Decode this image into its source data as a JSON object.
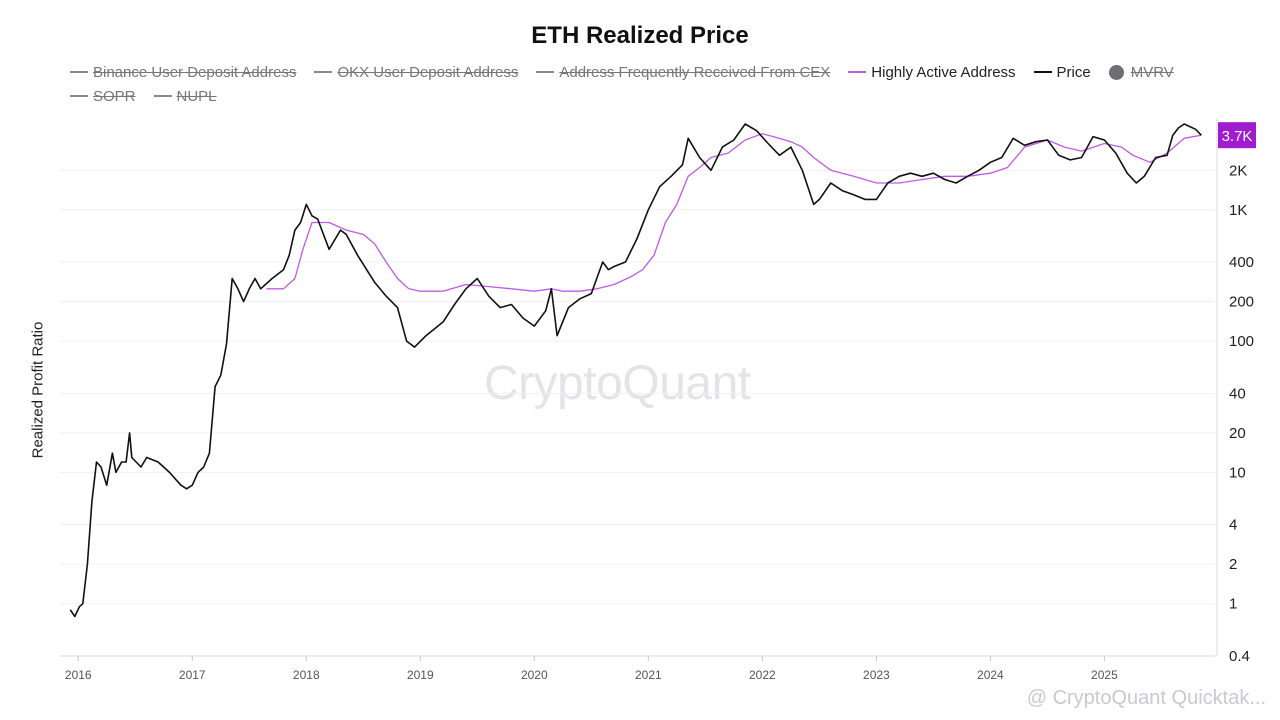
{
  "title": "ETH Realized Price",
  "legend": [
    {
      "label": "Binance User Deposit Address",
      "active": false,
      "marker": "line",
      "color": "#8a8a8a"
    },
    {
      "label": "OKX User Deposit Address",
      "active": false,
      "marker": "line",
      "color": "#8a8a8a"
    },
    {
      "label": "Address Frequently Received From CEX",
      "active": false,
      "marker": "line",
      "color": "#8a8a8a"
    },
    {
      "label": "Highly Active Address",
      "active": true,
      "marker": "line",
      "color": "#c15be6"
    },
    {
      "label": "Price",
      "active": true,
      "marker": "line",
      "color": "#111111"
    },
    {
      "label": "MVRV",
      "active": false,
      "marker": "dot",
      "color": "#6e6e73"
    },
    {
      "label": "SOPR",
      "active": false,
      "marker": "line",
      "color": "#8a8a8a"
    },
    {
      "label": "NUPL",
      "active": false,
      "marker": "line",
      "color": "#8a8a8a"
    }
  ],
  "watermark": "CryptoQuant",
  "credit": "@ CryptoQuant Quicktak...",
  "chart_data": {
    "type": "line",
    "title": "ETH Realized Price",
    "ylabel": "Realized Profit Ratio",
    "yscale": "log",
    "ylim": [
      0.4,
      5000
    ],
    "y_ticks": [
      0.4,
      1,
      2,
      4,
      10,
      20,
      40,
      100,
      200,
      400,
      1000,
      2000
    ],
    "y_tick_labels": [
      "0.4",
      "1",
      "2",
      "4",
      "10",
      "20",
      "40",
      "100",
      "200",
      "400",
      "1K",
      "2K"
    ],
    "xlim": [
      2015.84,
      2025.97
    ],
    "x_ticks": [
      2016,
      2017,
      2018,
      2019,
      2020,
      2021,
      2022,
      2023,
      2024,
      2025
    ],
    "x_tick_labels": [
      "2016",
      "2017",
      "2018",
      "2019",
      "2020",
      "2021",
      "2022",
      "2023",
      "2024",
      "2025"
    ],
    "last_value_label": "3.7K",
    "last_value": 3700,
    "grid": true,
    "legend_position": "top",
    "series": [
      {
        "name": "Price",
        "color": "#111111",
        "x": [
          2015.93,
          2015.97,
          2016.01,
          2016.04,
          2016.08,
          2016.12,
          2016.16,
          2016.2,
          2016.25,
          2016.3,
          2016.33,
          2016.38,
          2016.42,
          2016.45,
          2016.47,
          2016.55,
          2016.6,
          2016.7,
          2016.8,
          2016.9,
          2016.95,
          2017.0,
          2017.05,
          2017.1,
          2017.15,
          2017.2,
          2017.25,
          2017.3,
          2017.35,
          2017.4,
          2017.45,
          2017.5,
          2017.55,
          2017.6,
          2017.7,
          2017.8,
          2017.85,
          2017.9,
          2017.95,
          2018.0,
          2018.05,
          2018.1,
          2018.2,
          2018.3,
          2018.35,
          2018.45,
          2018.6,
          2018.7,
          2018.8,
          2018.88,
          2018.95,
          2019.05,
          2019.2,
          2019.3,
          2019.4,
          2019.5,
          2019.6,
          2019.7,
          2019.8,
          2019.9,
          2020.0,
          2020.1,
          2020.15,
          2020.2,
          2020.3,
          2020.4,
          2020.5,
          2020.6,
          2020.65,
          2020.7,
          2020.8,
          2020.9,
          2021.0,
          2021.1,
          2021.2,
          2021.3,
          2021.35,
          2021.45,
          2021.55,
          2021.65,
          2021.75,
          2021.85,
          2021.95,
          2022.05,
          2022.15,
          2022.25,
          2022.35,
          2022.45,
          2022.5,
          2022.6,
          2022.7,
          2022.8,
          2022.9,
          2023.0,
          2023.1,
          2023.2,
          2023.3,
          2023.4,
          2023.5,
          2023.6,
          2023.7,
          2023.8,
          2023.9,
          2024.0,
          2024.1,
          2024.2,
          2024.3,
          2024.4,
          2024.5,
          2024.6,
          2024.7,
          2024.8,
          2024.9,
          2025.0,
          2025.1,
          2025.2,
          2025.28,
          2025.35,
          2025.45,
          2025.55,
          2025.6,
          2025.65,
          2025.7,
          2025.8,
          2025.85
        ],
        "y": [
          0.9,
          0.8,
          0.95,
          1.0,
          2.0,
          6.0,
          12.0,
          11.0,
          8.0,
          14.0,
          10.0,
          12.0,
          12.0,
          20.0,
          13.0,
          11.0,
          13.0,
          12.0,
          10.0,
          8.0,
          7.5,
          8.0,
          10.0,
          11.0,
          14.0,
          45.0,
          55.0,
          95.0,
          300.0,
          250.0,
          200.0,
          250.0,
          300.0,
          250.0,
          300.0,
          350.0,
          450.0,
          700.0,
          800.0,
          1100.0,
          900.0,
          850.0,
          500.0,
          700.0,
          650.0,
          450.0,
          280.0,
          220.0,
          180.0,
          100.0,
          90.0,
          110.0,
          140.0,
          190.0,
          250.0,
          300.0,
          220.0,
          180.0,
          190.0,
          150.0,
          130.0,
          170.0,
          250.0,
          110.0,
          180.0,
          210.0,
          230.0,
          400.0,
          350.0,
          370.0,
          400.0,
          600.0,
          1000.0,
          1500.0,
          1800.0,
          2200.0,
          3500.0,
          2500.0,
          2000.0,
          3000.0,
          3400.0,
          4500.0,
          4000.0,
          3200.0,
          2600.0,
          3000.0,
          2000.0,
          1100.0,
          1200.0,
          1600.0,
          1400.0,
          1300.0,
          1200.0,
          1200.0,
          1600.0,
          1800.0,
          1900.0,
          1800.0,
          1900.0,
          1700.0,
          1600.0,
          1800.0,
          2000.0,
          2300.0,
          2500.0,
          3500.0,
          3100.0,
          3300.0,
          3400.0,
          2600.0,
          2400.0,
          2500.0,
          3600.0,
          3400.0,
          2700.0,
          1900.0,
          1600.0,
          1800.0,
          2500.0,
          2600.0,
          3700.0,
          4200.0,
          4500.0,
          4100.0,
          3700.0
        ]
      },
      {
        "name": "Highly Active Address",
        "color": "#c15be6",
        "x": [
          2017.65,
          2017.8,
          2017.9,
          2017.97,
          2018.05,
          2018.2,
          2018.35,
          2018.5,
          2018.6,
          2018.7,
          2018.8,
          2018.9,
          2019.0,
          2019.2,
          2019.4,
          2019.6,
          2019.8,
          2020.0,
          2020.15,
          2020.25,
          2020.4,
          2020.55,
          2020.7,
          2020.85,
          2020.95,
          2021.05,
          2021.15,
          2021.25,
          2021.35,
          2021.45,
          2021.55,
          2021.7,
          2021.85,
          2022.0,
          2022.1,
          2022.25,
          2022.35,
          2022.45,
          2022.6,
          2022.8,
          2023.0,
          2023.2,
          2023.4,
          2023.6,
          2023.8,
          2024.0,
          2024.15,
          2024.3,
          2024.5,
          2024.65,
          2024.8,
          2025.0,
          2025.15,
          2025.25,
          2025.4,
          2025.55,
          2025.7,
          2025.85
        ],
        "y": [
          250.0,
          250.0,
          300.0,
          500.0,
          800.0,
          800.0,
          700.0,
          650.0,
          550.0,
          400.0,
          300.0,
          250.0,
          240.0,
          240.0,
          270.0,
          260.0,
          250.0,
          240.0,
          250.0,
          240.0,
          240.0,
          250.0,
          270.0,
          310.0,
          350.0,
          450.0,
          800.0,
          1100.0,
          1800.0,
          2100.0,
          2500.0,
          2700.0,
          3400.0,
          3800.0,
          3600.0,
          3300.0,
          3000.0,
          2500.0,
          2000.0,
          1800.0,
          1600.0,
          1600.0,
          1700.0,
          1800.0,
          1800.0,
          1900.0,
          2100.0,
          3000.0,
          3400.0,
          3000.0,
          2800.0,
          3200.0,
          3000.0,
          2600.0,
          2300.0,
          2700.0,
          3500.0,
          3700.0
        ]
      }
    ]
  }
}
